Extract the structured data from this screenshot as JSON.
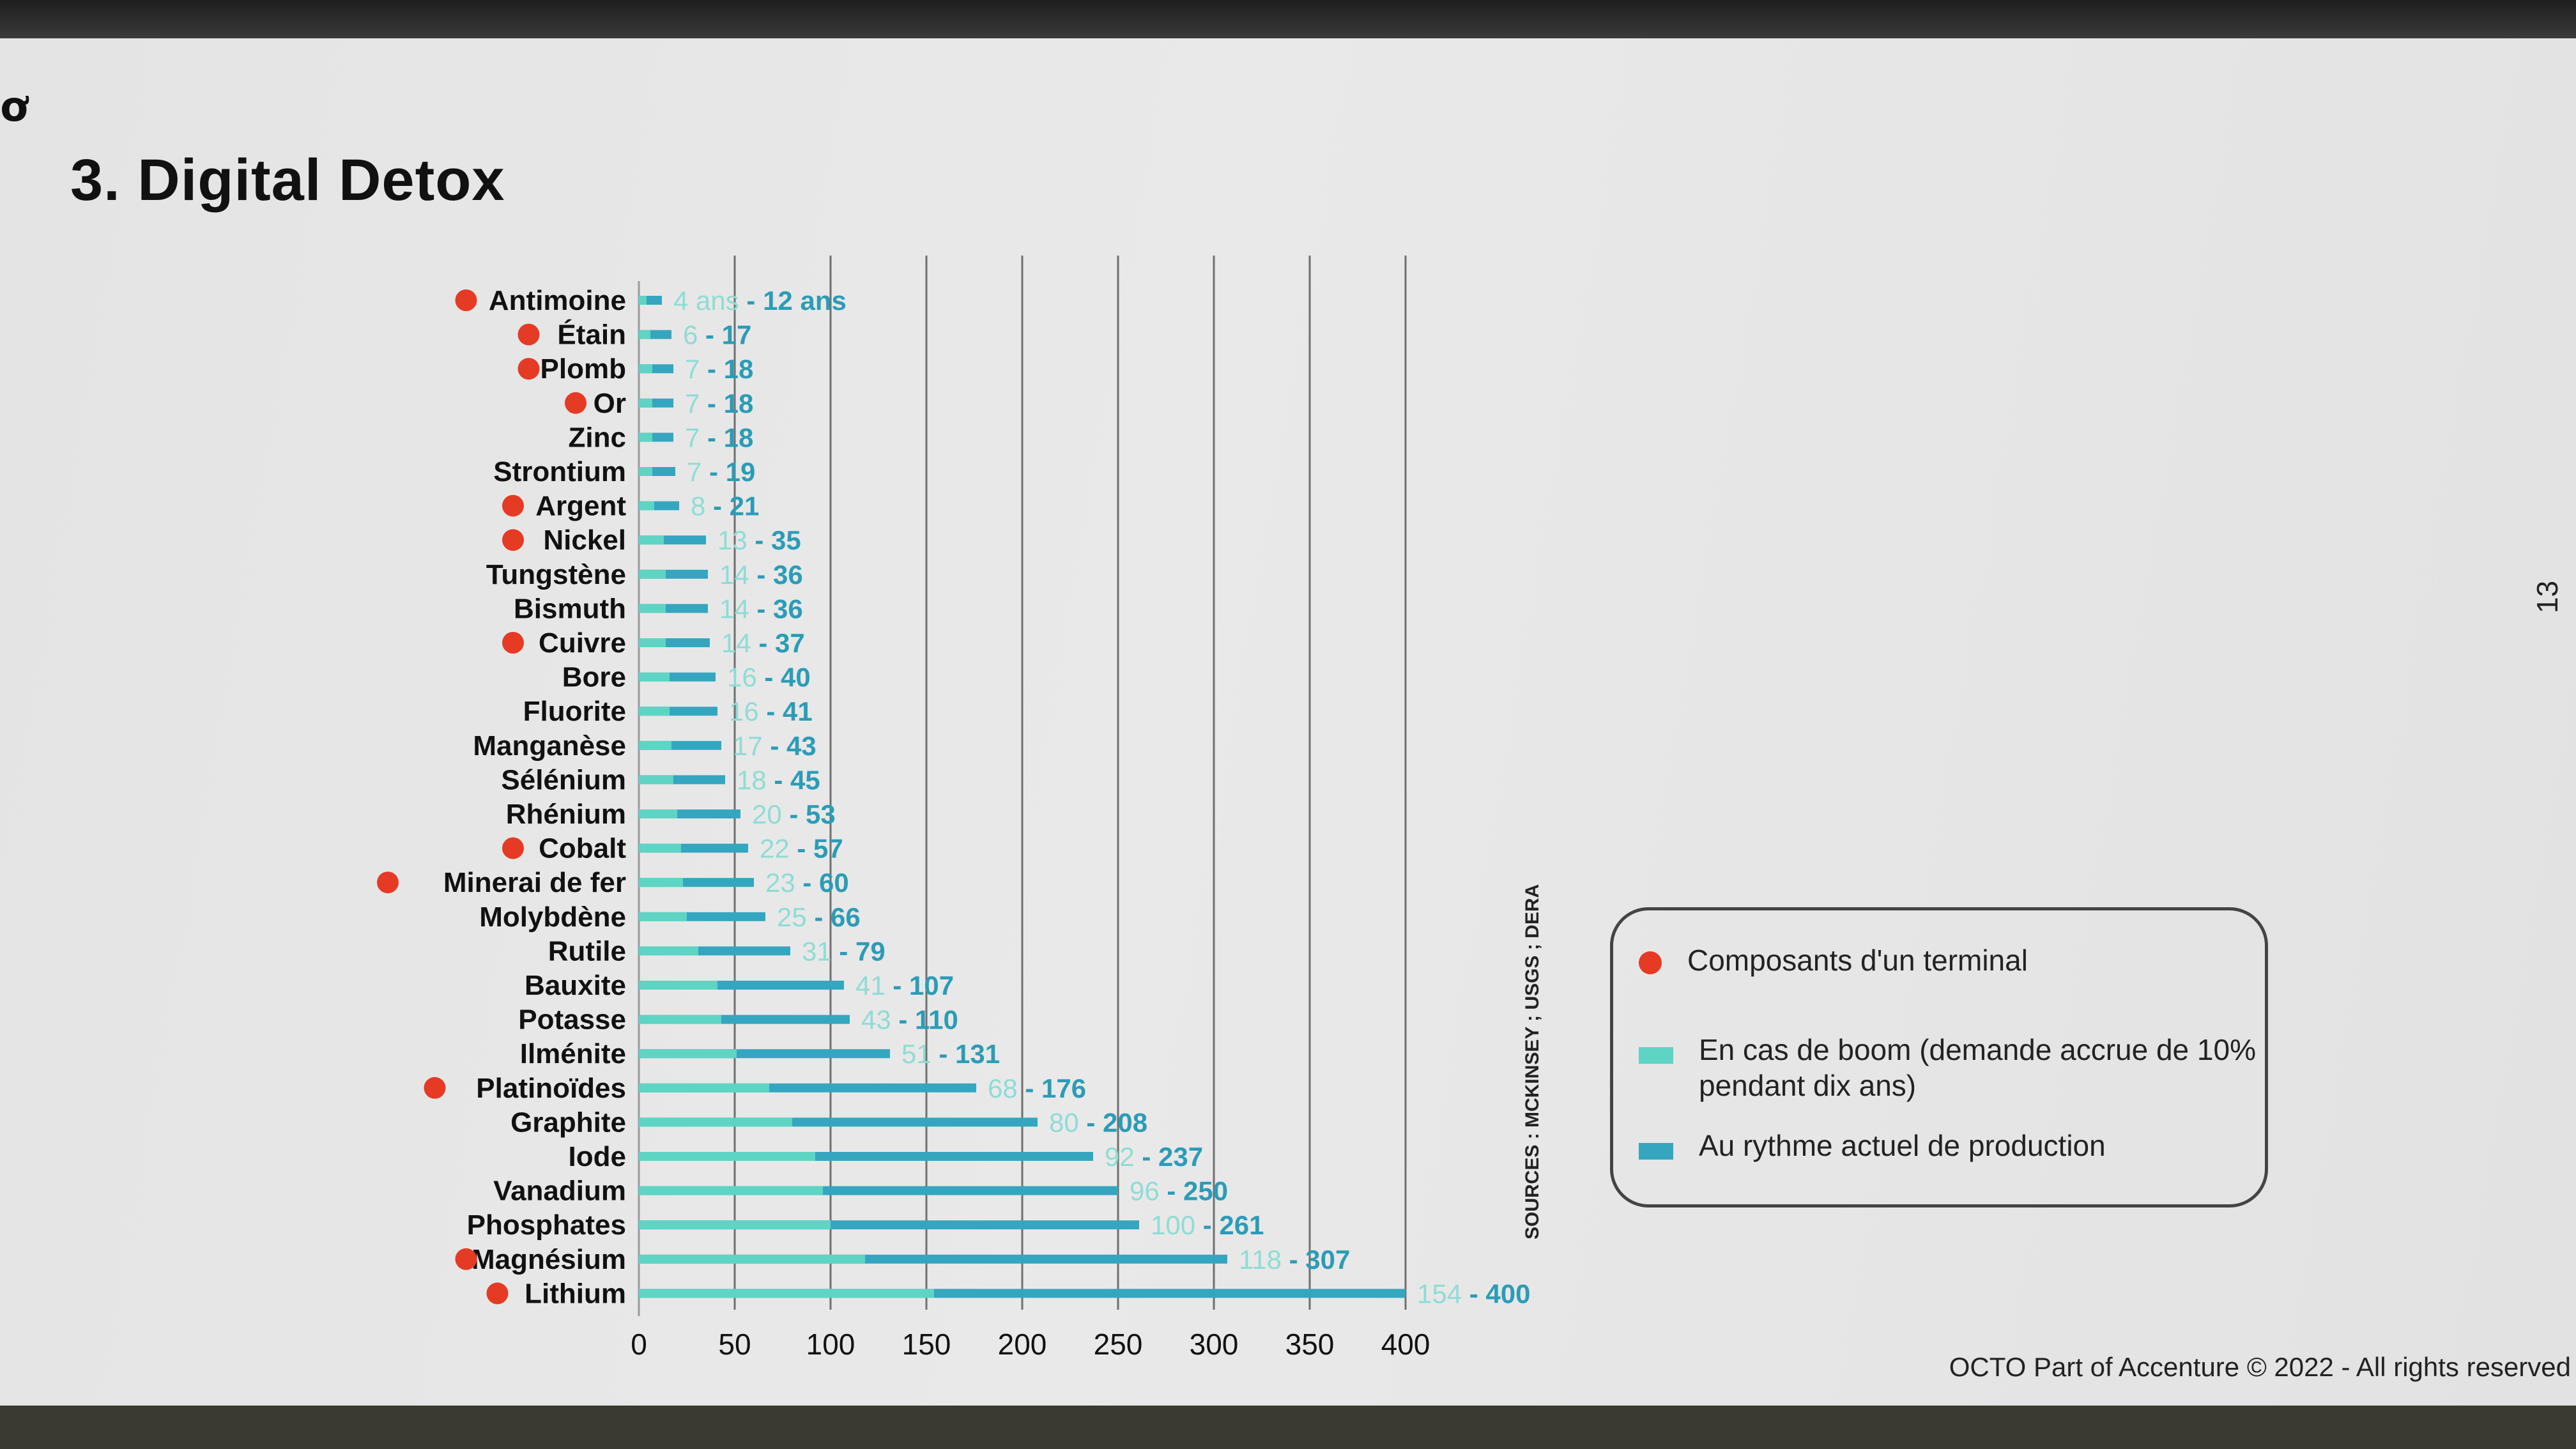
{
  "slide": {
    "title": "3. Digital Detox",
    "page_number": "13",
    "footer": "OCTO Part of Accenture © 2022 - All rights reserved",
    "logo_icon": "octo-logo-icon"
  },
  "colors": {
    "boom": "#5ed4c4",
    "current": "#35a6bf",
    "dot": "#e53a24",
    "text": "#111111",
    "label_light": "#8fdcd5"
  },
  "legend": {
    "items": [
      {
        "label": "Composants d'un terminal",
        "swatch": "dot"
      },
      {
        "label": "En cas de boom (demande accrue de 10% pendant dix ans)",
        "swatch": "boom"
      },
      {
        "label": "Au rythme actuel de production",
        "swatch": "current"
      }
    ]
  },
  "chart_data": {
    "type": "bar",
    "orientation": "horizontal",
    "title": "",
    "xlabel": "",
    "ylabel": "",
    "xlim": [
      0,
      400
    ],
    "x_ticks": [
      0,
      50,
      100,
      150,
      200,
      250,
      300,
      350,
      400
    ],
    "x_tick_labels": [
      "0",
      "50",
      "100",
      "150",
      "200",
      "250",
      "300",
      "350",
      "400"
    ],
    "grid": "vertical",
    "source_note": "SOURCES : MCKINSEY ; USGS ; DERA",
    "categories": [
      "Antimoine",
      "Étain",
      "Plomb",
      "Or",
      "Zinc",
      "Strontium",
      "Argent",
      "Nickel",
      "Tungstène",
      "Bismuth",
      "Cuivre",
      "Bore",
      "Fluorite",
      "Manganèse",
      "Sélénium",
      "Rhénium",
      "Cobalt",
      "Minerai de fer",
      "Molybdène",
      "Rutile",
      "Bauxite",
      "Potasse",
      "Ilménite",
      "Platinoïdes",
      "Graphite",
      "Iode",
      "Vanadium",
      "Phosphates",
      "Magnésium",
      "Lithium"
    ],
    "terminal_component": [
      true,
      true,
      true,
      true,
      false,
      false,
      true,
      true,
      false,
      false,
      true,
      false,
      false,
      false,
      false,
      false,
      true,
      true,
      false,
      false,
      false,
      false,
      false,
      true,
      false,
      false,
      false,
      false,
      true,
      true
    ],
    "value_labels": [
      "4 ans - 12 ans",
      "6 - 17",
      "7 - 18",
      "7 - 18",
      "7 - 18",
      "7 - 19",
      "8 - 21",
      "13 - 35",
      "14 - 36",
      "14 - 36",
      "14 - 37",
      "16 - 40",
      "16 - 41",
      "17 - 43",
      "18 - 45",
      "20 - 53",
      "22 - 57",
      "23 - 60",
      "25 - 66",
      "31 - 79",
      "41 - 107",
      "43 - 110",
      "51 - 131",
      "68 - 176",
      "80 - 208",
      "92 - 237",
      "96 - 250",
      "100 - 261",
      "118 - 307",
      "154 - 400"
    ],
    "series": [
      {
        "name": "En cas de boom (demande accrue de 10% pendant dix ans)",
        "values": [
          4,
          6,
          7,
          7,
          7,
          7,
          8,
          13,
          14,
          14,
          14,
          16,
          16,
          17,
          18,
          20,
          22,
          23,
          25,
          31,
          41,
          43,
          51,
          68,
          80,
          92,
          96,
          100,
          118,
          154
        ]
      },
      {
        "name": "Au rythme actuel de production",
        "values": [
          12,
          17,
          18,
          18,
          18,
          19,
          21,
          35,
          36,
          36,
          37,
          40,
          41,
          43,
          45,
          53,
          57,
          60,
          66,
          79,
          107,
          110,
          131,
          176,
          208,
          237,
          250,
          261,
          307,
          400
        ]
      }
    ]
  }
}
